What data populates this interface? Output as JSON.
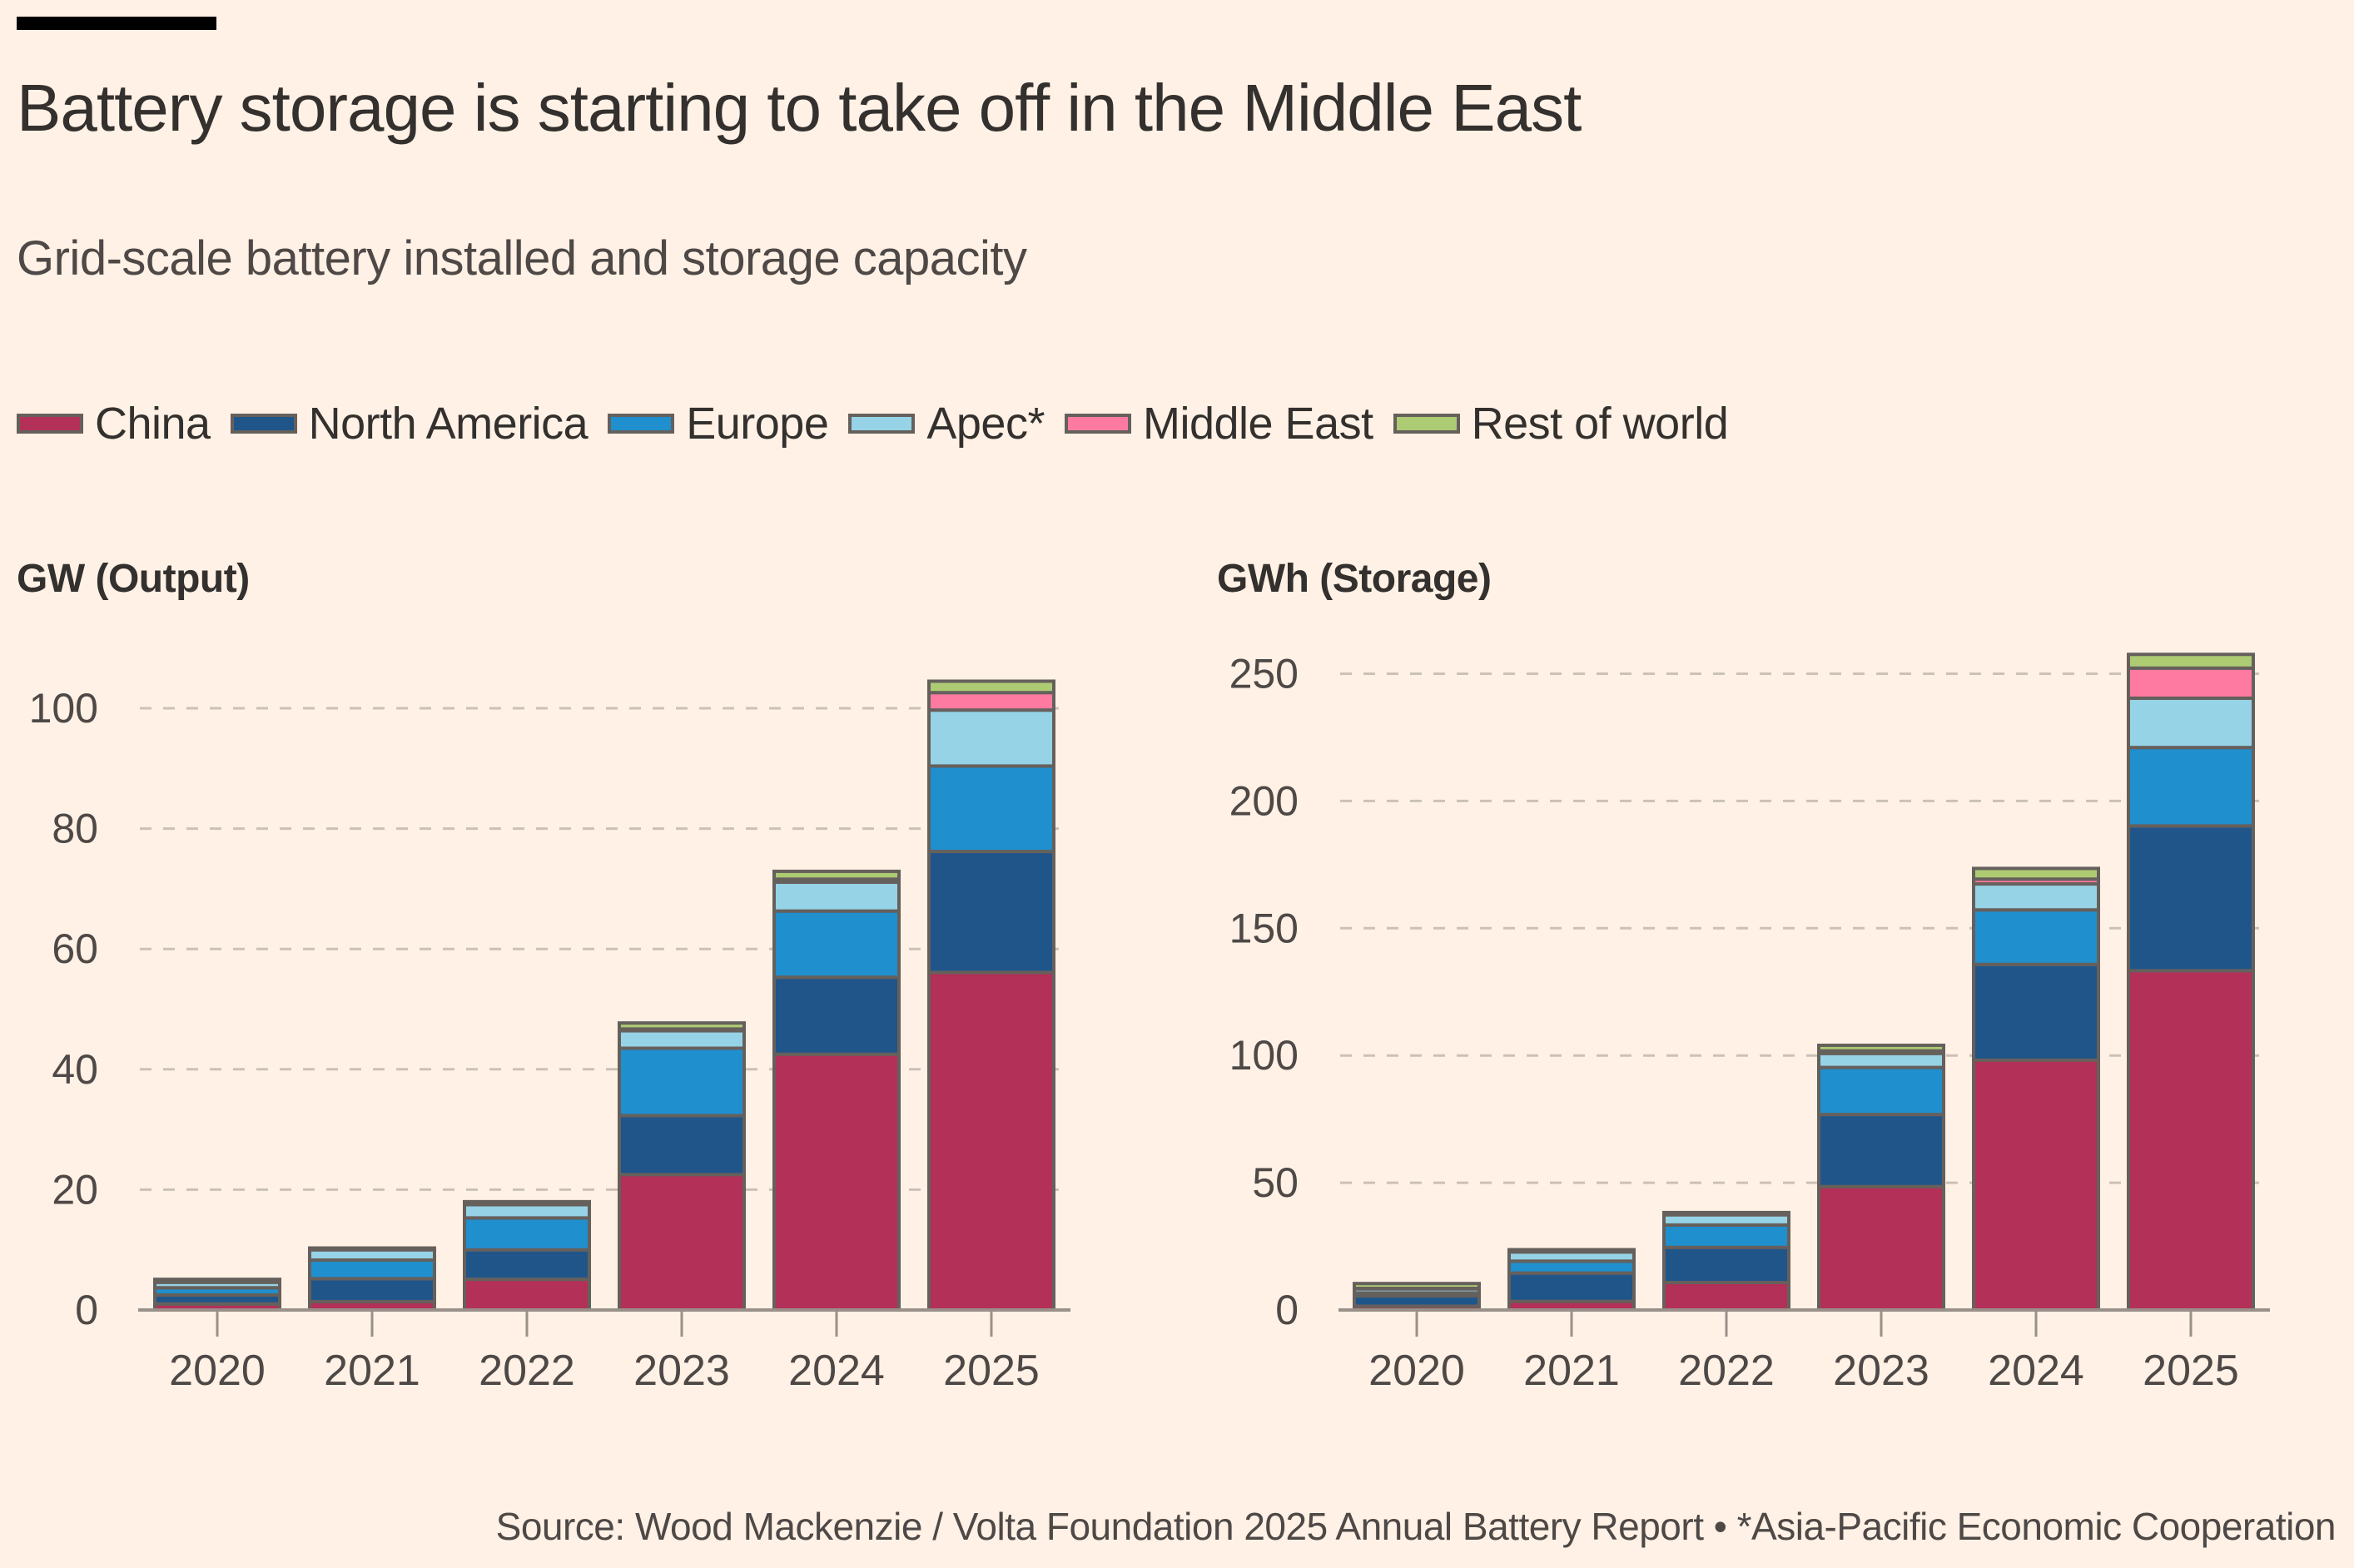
{
  "header": {
    "title": "Battery storage is starting to take off in the Middle East",
    "subtitle": "Grid-scale battery installed and storage capacity"
  },
  "legend": [
    {
      "label": "China",
      "color": "#b33059"
    },
    {
      "label": "North America",
      "color": "#20558a"
    },
    {
      "label": "Europe",
      "color": "#1f8fce"
    },
    {
      "label": "Apec*",
      "color": "#96d3e6"
    },
    {
      "label": "Middle East",
      "color": "#ff7aa1"
    },
    {
      "label": "Rest of world",
      "color": "#adcb73"
    }
  ],
  "footer": {
    "source": "Source: Wood Mackenzie / Volta Foundation 2025 Annual Battery Report • *Asia-Pacific Economic Cooperation"
  },
  "chart_data": [
    {
      "type": "bar",
      "stacked": true,
      "title": "GW (Output)",
      "ylabel": "GW (Output)",
      "xlabel": "",
      "categories": [
        "2020",
        "2021",
        "2022",
        "2023",
        "2024",
        "2025"
      ],
      "ylim": [
        0,
        110
      ],
      "yticks": [
        0,
        20,
        40,
        60,
        80,
        100
      ],
      "grid": true,
      "series": [
        {
          "name": "China",
          "values": [
            1.0,
            1.4,
            5.1,
            22.5,
            42.5,
            56.1
          ]
        },
        {
          "name": "North America",
          "values": [
            1.5,
            3.8,
            4.9,
            9.8,
            12.8,
            20.1
          ]
        },
        {
          "name": "Europe",
          "values": [
            1.2,
            3.1,
            5.3,
            11.2,
            11.0,
            14.2
          ]
        },
        {
          "name": "Apec*",
          "values": [
            0.9,
            1.7,
            2.2,
            2.9,
            4.8,
            9.3
          ]
        },
        {
          "name": "Middle East",
          "values": [
            0.1,
            0.1,
            0.1,
            0.3,
            0.5,
            2.9
          ]
        },
        {
          "name": "Rest of world",
          "values": [
            0.4,
            0.2,
            0.4,
            1.0,
            1.3,
            1.9
          ]
        }
      ]
    },
    {
      "type": "bar",
      "stacked": true,
      "title": "GWh (Storage)",
      "ylabel": "GWh (Storage)",
      "xlabel": "",
      "categories": [
        "2020",
        "2021",
        "2022",
        "2023",
        "2024",
        "2025"
      ],
      "ylim": [
        0,
        270
      ],
      "yticks": [
        0,
        50,
        100,
        150,
        200,
        250
      ],
      "grid": true,
      "series": [
        {
          "name": "China",
          "values": [
            1.5,
            3.4,
            10.8,
            48.5,
            98.2,
            133.3
          ]
        },
        {
          "name": "North America",
          "values": [
            4.1,
            11.1,
            13.8,
            28.3,
            37.6,
            56.9
          ]
        },
        {
          "name": "Europe",
          "values": [
            1.1,
            4.7,
            8.8,
            18.5,
            21.4,
            30.8
          ]
        },
        {
          "name": "Apec*",
          "values": [
            1.6,
            3.6,
            4.0,
            5.5,
            10.2,
            19.4
          ]
        },
        {
          "name": "Middle East",
          "values": [
            0.2,
            0.2,
            0.2,
            1.0,
            1.9,
            11.8
          ]
        },
        {
          "name": "Rest of world",
          "values": [
            1.9,
            0.7,
            0.7,
            2.2,
            4.2,
            5.4
          ]
        }
      ]
    }
  ]
}
